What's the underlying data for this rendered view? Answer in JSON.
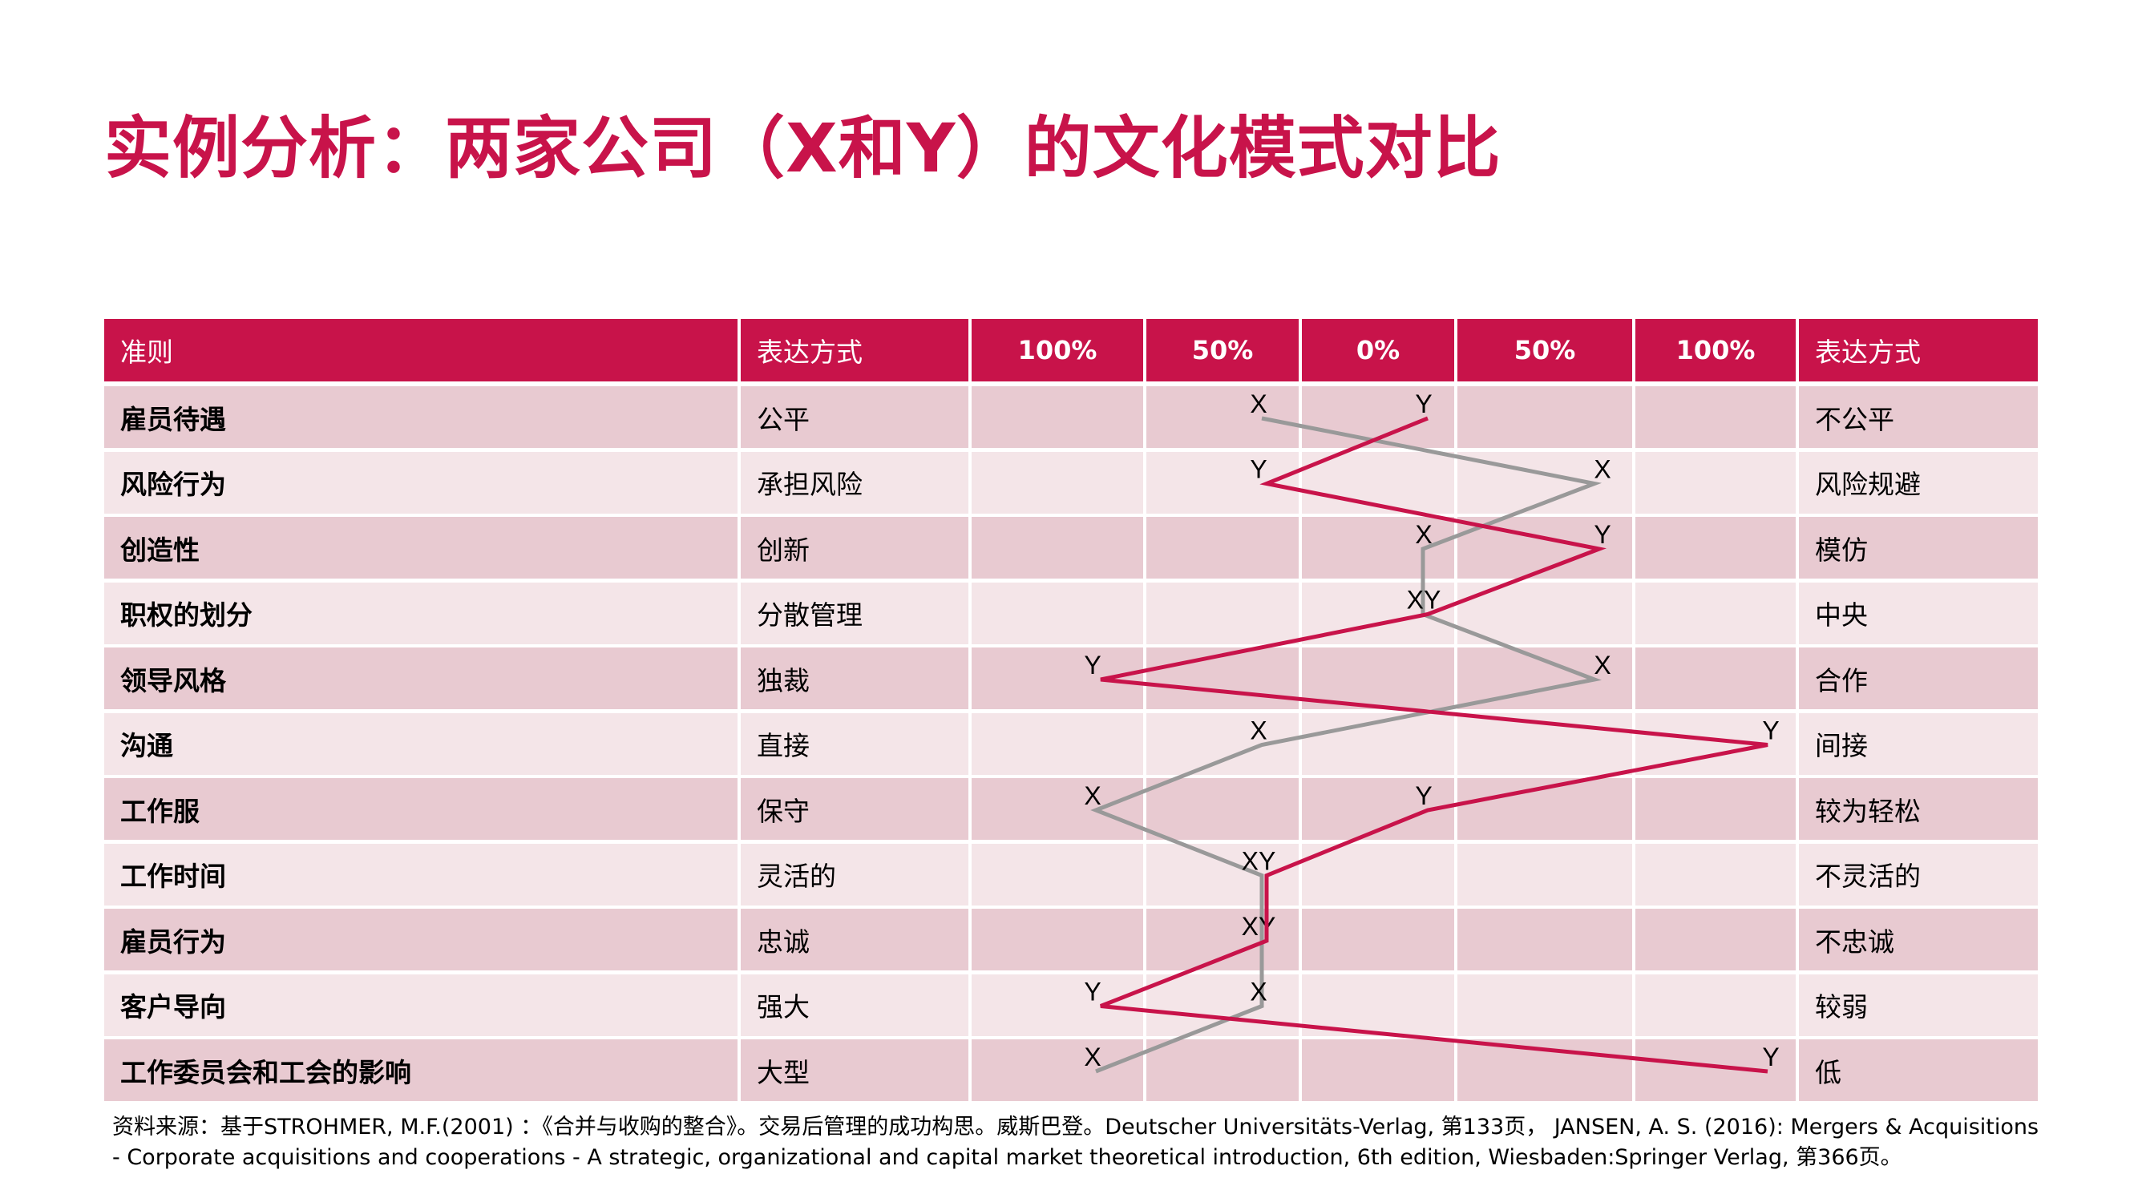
{
  "title": "实例分析：两家公司（X和Y）的文化模式对比",
  "table": {
    "headers": [
      "准则",
      "表达方式",
      "100%",
      "50%",
      "0%",
      "50%",
      "100%",
      "表达方式"
    ]
  },
  "chart_data": {
    "type": "line",
    "x_positions": [
      "100%",
      "50%",
      "0%",
      "50%",
      "100%"
    ],
    "categories": [
      "雇员待遇",
      "风险行为",
      "创造性",
      "职权的划分",
      "领导风格",
      "沟通",
      "工作服",
      "工作时间",
      "雇员行为",
      "客户导向",
      "工作委员会和工会的影响"
    ],
    "left_expression": [
      "公平",
      "承担风险",
      "创新",
      "分散管理",
      "独裁",
      "直接",
      "保守",
      "灵活的",
      "忠诚",
      "强大",
      "大型"
    ],
    "right_expression": [
      "不公平",
      "风险规避",
      "模仿",
      "中央",
      "合作",
      "间接",
      "较为轻松",
      "不灵活的",
      "不忠诚",
      "较弱",
      "低"
    ],
    "series": [
      {
        "name": "X",
        "color": "#999999",
        "labels": [
          "X",
          "X",
          "X",
          "XY",
          "X",
          "X",
          "X",
          "XY",
          "XY",
          "X",
          "X"
        ],
        "values": [
          -50,
          50,
          0,
          0,
          50,
          -50,
          -100,
          -50,
          -50,
          -50,
          -100
        ]
      },
      {
        "name": "Y",
        "color": "#c8134a",
        "labels": [
          "Y",
          "Y",
          "Y",
          "",
          "Y",
          "Y",
          "Y",
          "",
          "",
          "Y",
          "Y"
        ],
        "values": [
          0,
          -50,
          50,
          0,
          -100,
          100,
          0,
          -50,
          -50,
          -100,
          100
        ]
      }
    ],
    "xlim": [
      -100,
      100
    ]
  },
  "source": "资料来源：基于STROHMER, M.F.(2001) ：《合并与收购的整合》。交易后管理的成功构思。威斯巴登。Deutscher Universitäts-Verlag, 第133页， JANSEN, A. S. (2016): Mergers & Acquisitions - Corporate acquisitions and cooperations - A strategic, organizational and capital market theoretical introduction, 6th edition, Wiesbaden:Springer Verlag, 第366页。"
}
